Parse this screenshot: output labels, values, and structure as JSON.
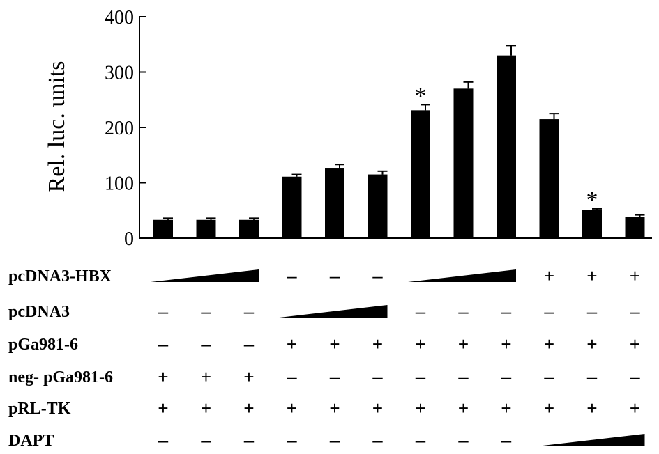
{
  "chart_data": {
    "type": "bar",
    "title": "",
    "xlabel": "",
    "ylabel": "Rel. luc. units",
    "ylim": [
      0,
      400
    ],
    "yticks": [
      "0",
      "100",
      "200",
      "300",
      "400"
    ],
    "values": [
      33,
      33,
      33,
      111,
      127,
      115,
      231,
      270,
      330,
      215,
      51,
      39
    ],
    "errors": [
      3,
      3,
      3,
      4,
      6,
      6,
      10,
      12,
      18,
      10,
      2,
      3
    ],
    "significance": [
      "",
      "",
      "",
      "",
      "",
      "",
      "*",
      "",
      "",
      "",
      "*",
      ""
    ],
    "bar_color": "#000000",
    "conditions": [
      {
        "label": "pcDNA3-HBX",
        "entries": [
          "ramp",
          "ramp",
          "ramp",
          "–",
          "–",
          "–",
          "ramp",
          "ramp",
          "ramp",
          "+",
          "+",
          "+"
        ]
      },
      {
        "label": "pcDNA3",
        "entries": [
          "–",
          "–",
          "–",
          "ramp",
          "ramp",
          "ramp",
          "–",
          "–",
          "–",
          "–",
          "–",
          "–"
        ]
      },
      {
        "label": "pGa981-6",
        "entries": [
          "–",
          "–",
          "–",
          "+",
          "+",
          "+",
          "+",
          "+",
          "+",
          "+",
          "+",
          "+"
        ]
      },
      {
        "label": "neg- pGa981-6",
        "entries": [
          "+",
          "+",
          "+",
          "–",
          "–",
          "–",
          "–",
          "–",
          "–",
          "–",
          "–",
          "–"
        ]
      },
      {
        "label": "pRL-TK",
        "entries": [
          "+",
          "+",
          "+",
          "+",
          "+",
          "+",
          "+",
          "+",
          "+",
          "+",
          "+",
          "+"
        ]
      },
      {
        "label": "DAPT",
        "entries": [
          "–",
          "–",
          "–",
          "–",
          "–",
          "–",
          "–",
          "–",
          "–",
          "ramp",
          "ramp",
          "ramp"
        ]
      }
    ]
  }
}
